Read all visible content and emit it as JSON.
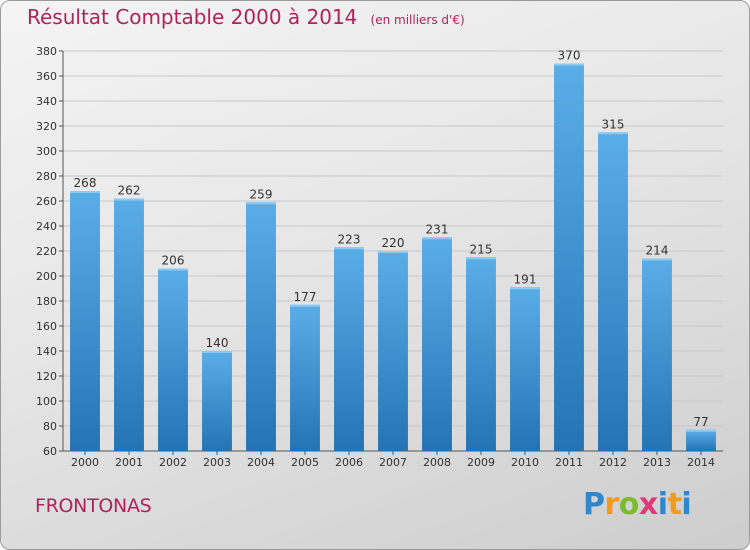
{
  "header": {
    "title": "Résultat Comptable 2000 à 2014",
    "subtitle": "(en milliers d'€)"
  },
  "footer": {
    "commune": "FRONTONAS",
    "logo_text": "Proxiti"
  },
  "colors": {
    "title": "#b0235a",
    "bar_top": "#5aaee8",
    "bar_bottom": "#2474b5",
    "grid": "#c8c8c8"
  },
  "chart_data": {
    "type": "bar",
    "categories": [
      "2000",
      "2001",
      "2002",
      "2003",
      "2004",
      "2005",
      "2006",
      "2007",
      "2008",
      "2009",
      "2010",
      "2011",
      "2012",
      "2013",
      "2014"
    ],
    "values": [
      268,
      262,
      206,
      140,
      259,
      177,
      223,
      220,
      231,
      215,
      191,
      370,
      315,
      214,
      77
    ],
    "title": "Résultat Comptable 2000 à 2014",
    "ylim": [
      60,
      380
    ],
    "yticks": [
      60,
      80,
      100,
      120,
      140,
      160,
      180,
      200,
      220,
      240,
      260,
      280,
      300,
      320,
      340,
      360,
      380
    ],
    "grid": true,
    "data_labels": true
  }
}
